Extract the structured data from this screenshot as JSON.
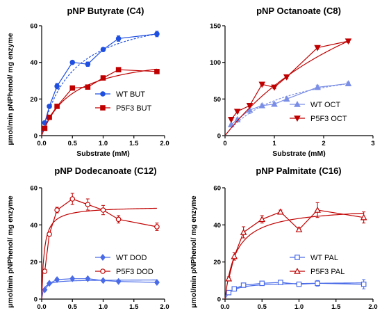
{
  "colors": {
    "wt": "#1f4fe0",
    "mut": "#c00000",
    "wt_light": "#7a8ee6",
    "axis": "#000000"
  },
  "chart_data": [
    {
      "type": "scatter",
      "title": "pNP Butyrate (C4)",
      "xlabel": "Substrate (mM)",
      "ylabel": "µmol/min pNPhenol/ mg enzyme",
      "xlim": [
        0,
        2.0
      ],
      "ylim": [
        0,
        60
      ],
      "xticks": [
        "0.0",
        "0.5",
        "1.0",
        "1.5",
        "2.0"
      ],
      "yticks": [
        "0",
        "20",
        "40",
        "60"
      ],
      "legend_position": "bottom-right",
      "series": [
        {
          "name": "WT BUT",
          "marker": "circle-filled",
          "color": "#1f4fe0",
          "line_style": "solid-connect+dashed-fit",
          "x": [
            0.05,
            0.125,
            0.25,
            0.5,
            0.75,
            1.0,
            1.25,
            1.875
          ],
          "y": [
            7,
            16,
            27,
            40,
            39,
            47,
            53,
            55.5
          ],
          "err": [
            0.5,
            0.8,
            1.5,
            0.8,
            1.2,
            1.0,
            1.5,
            1.5
          ],
          "fit": {
            "vmax": 70.4,
            "km": 0.5
          }
        },
        {
          "name": "P5F3 BUT",
          "marker": "square-filled",
          "color": "#c00000",
          "line_style": "solid",
          "x": [
            0.05,
            0.125,
            0.25,
            0.5,
            0.75,
            1.0,
            1.25,
            1.875
          ],
          "y": [
            4,
            10,
            16,
            26,
            26.5,
            31.5,
            36,
            35
          ],
          "err": [
            0.5,
            0.5,
            0.8,
            0.8,
            1.0,
            0.8,
            1.2,
            1.0
          ],
          "fit": {
            "vmax": 46,
            "km": 0.5
          }
        }
      ]
    },
    {
      "type": "scatter",
      "title": "pNP Octanoate (C8)",
      "xlabel": "Substrate (mM)",
      "ylabel": "",
      "xlim": [
        0,
        3
      ],
      "ylim": [
        0,
        150
      ],
      "xticks": [
        "0",
        "1",
        "2",
        "3"
      ],
      "yticks": [
        "0",
        "50",
        "100",
        "150"
      ],
      "legend_position": "bottom-right",
      "series": [
        {
          "name": "WT OCT",
          "marker": "triangle-up",
          "color": "#7a8ee6",
          "line_style": "solid-connect+dashed-fit",
          "x": [
            0.125,
            0.25,
            0.5,
            0.75,
            1.0,
            1.25,
            1.875,
            2.5
          ],
          "y": [
            15,
            22,
            35,
            41,
            43,
            50,
            66,
            71
          ],
          "err": [
            1,
            2,
            5,
            2,
            2,
            2,
            3,
            2
          ],
          "fit": {
            "vmax": 105,
            "km": 1.2
          }
        },
        {
          "name": "P5F3 OCT",
          "marker": "triangle-down",
          "color": "#c00000",
          "line_style": "solid",
          "x": [
            0.125,
            0.25,
            0.5,
            0.75,
            1.0,
            1.25,
            1.875,
            2.5
          ],
          "y": [
            22,
            33,
            41,
            70,
            66,
            80,
            120,
            129
          ],
          "err": [
            1,
            2,
            2,
            2,
            2,
            2,
            2,
            2
          ],
          "fit": {
            "vmax": 320,
            "km": 3.7
          }
        }
      ]
    },
    {
      "type": "scatter",
      "title": "pNP Dodecanoate (C12)",
      "xlabel": "Substrate (mM)",
      "ylabel": "µmol/min pNPhenol/ mg enzyme",
      "xlim": [
        0,
        2.0
      ],
      "ylim": [
        0,
        60
      ],
      "xticks": [
        "0.0",
        "0.5",
        "1.0",
        "1.5",
        "2.0"
      ],
      "yticks": [
        "0",
        "20",
        "40",
        "60"
      ],
      "legend_position": "bottom-right",
      "series": [
        {
          "name": "WT DOD",
          "marker": "diamond-filled",
          "color": "#4a6be8",
          "line_style": "solid",
          "x": [
            0.05,
            0.125,
            0.25,
            0.5,
            0.75,
            1.0,
            1.25,
            1.875
          ],
          "y": [
            5,
            8.5,
            10.5,
            11,
            11,
            10,
            9.5,
            9
          ],
          "err": [
            0.5,
            0.5,
            0.5,
            0.5,
            0.5,
            0.5,
            0.5,
            0.5
          ],
          "fit": {
            "vmax": 10.5,
            "km": 0.035
          }
        },
        {
          "name": "P5F3 DOD",
          "marker": "circle-open",
          "color": "#c00000",
          "line_style": "solid",
          "x": [
            0.05,
            0.125,
            0.25,
            0.5,
            0.75,
            1.0,
            1.25,
            1.875
          ],
          "y": [
            15,
            35,
            48,
            54,
            51,
            48,
            43,
            39
          ],
          "err": [
            1,
            1,
            1.5,
            3,
            3,
            2.5,
            2,
            2
          ],
          "fit": {
            "vmax": 50,
            "km": 0.04
          }
        }
      ]
    },
    {
      "type": "scatter",
      "title": "pNP Palmitate (C16)",
      "xlabel": "Substrate (mM)",
      "ylabel": "µmol/min pNPhenol/ mg enzyme",
      "xlim": [
        0,
        2.0
      ],
      "ylim": [
        0,
        60
      ],
      "xticks": [
        "0.0",
        "0.5",
        "1.0",
        "1.5",
        "2.0"
      ],
      "yticks": [
        "0",
        "20",
        "40",
        "60"
      ],
      "legend_position": "bottom-right",
      "series": [
        {
          "name": "WT PAL",
          "marker": "square-open",
          "color": "#4a6be8",
          "line_style": "solid",
          "x": [
            0.05,
            0.125,
            0.25,
            0.5,
            0.75,
            1.0,
            1.25,
            1.875
          ],
          "y": [
            3.5,
            5.5,
            7.5,
            8.5,
            9,
            8,
            8.5,
            8
          ],
          "err": [
            0.5,
            0.5,
            1,
            1,
            1,
            1,
            1.5,
            2.5
          ],
          "fit": {
            "vmax": 9.2,
            "km": 0.1
          }
        },
        {
          "name": "P5F3 PAL",
          "marker": "triangle-open",
          "color": "#c00000",
          "line_style": "solid",
          "x": [
            0.05,
            0.125,
            0.25,
            0.5,
            0.75,
            1.0,
            1.25,
            1.875
          ],
          "y": [
            11,
            23,
            36,
            43,
            47,
            37.5,
            48,
            44
          ],
          "err": [
            1,
            2,
            3,
            2,
            1,
            1,
            4,
            3
          ],
          "fit": {
            "vmax": 50,
            "km": 0.15
          }
        }
      ]
    }
  ]
}
